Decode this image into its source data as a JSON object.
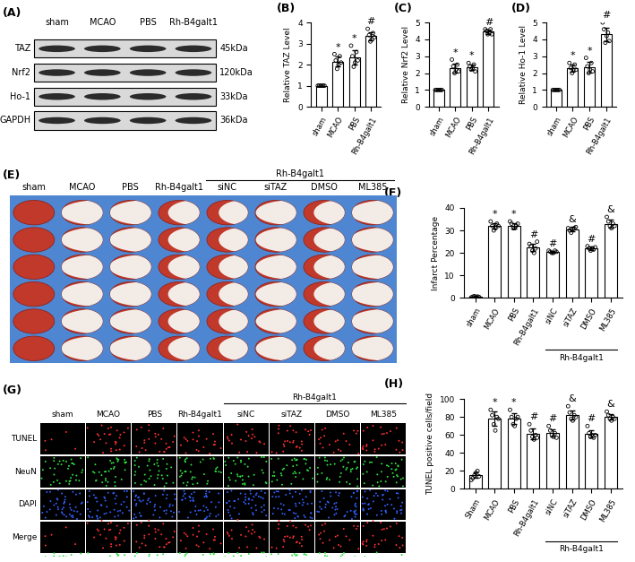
{
  "chart_data": [
    {
      "type": "bar",
      "title": "(B)",
      "ylabel": "Relative TAZ Level",
      "color": "#ffffff",
      "categories": [
        "sham",
        "MCAO",
        "PBS",
        "Rh-B4galt1"
      ],
      "values": [
        1,
        2.15,
        2.35,
        3.35
      ],
      "errors": [
        0,
        0.25,
        0.35,
        0.2
      ],
      "points": [
        [
          1,
          1,
          1,
          1,
          1,
          1
        ],
        [
          2.5,
          2.2,
          1.8,
          2.0,
          2.4,
          2.1
        ],
        [
          2.9,
          2.4,
          1.9,
          2.1,
          2.6,
          2.2
        ],
        [
          3.7,
          3.4,
          3.1,
          3.2,
          3.5,
          3.3
        ]
      ],
      "annotations": [
        null,
        "*",
        "*",
        "#"
      ],
      "ylim": [
        0,
        4
      ],
      "yticks": [
        0,
        1,
        2,
        3,
        4
      ]
    },
    {
      "type": "bar",
      "title": "(C)",
      "ylabel": "Relative Nrf2 Level",
      "color": "#ffffff",
      "categories": [
        "sham",
        "MCAO",
        "PBS",
        "Rh-B4galt1"
      ],
      "values": [
        1,
        2.3,
        2.35,
        4.45
      ],
      "errors": [
        0,
        0.25,
        0.15,
        0.12
      ],
      "points": [
        [
          1,
          1,
          1,
          1,
          1,
          1
        ],
        [
          2.8,
          2.4,
          2.0,
          2.2,
          2.5,
          2.1
        ],
        [
          2.6,
          2.4,
          2.2,
          2.3,
          2.5,
          2.1
        ],
        [
          4.6,
          4.5,
          4.3,
          4.4,
          4.6,
          4.3
        ]
      ],
      "annotations": [
        null,
        "*",
        "*",
        "#"
      ],
      "ylim": [
        0,
        5
      ],
      "yticks": [
        0,
        1,
        2,
        3,
        4,
        5
      ]
    },
    {
      "type": "bar",
      "title": "(D)",
      "ylabel": "Relative Ho-1 Level",
      "color": "#ffffff",
      "categories": [
        "sham",
        "MCAO",
        "PBS",
        "Rh-B4galt1"
      ],
      "values": [
        1,
        2.3,
        2.35,
        4.3
      ],
      "errors": [
        0,
        0.2,
        0.3,
        0.4
      ],
      "points": [
        [
          1,
          1,
          1,
          1,
          1,
          1
        ],
        [
          2.6,
          2.3,
          2.0,
          2.2,
          2.5,
          2.2
        ],
        [
          2.9,
          2.4,
          2.0,
          2.2,
          2.6,
          2.1
        ],
        [
          5.0,
          4.6,
          3.8,
          4.2,
          4.4,
          3.9
        ]
      ],
      "annotations": [
        null,
        "*",
        "*",
        "#"
      ],
      "ylim": [
        0,
        5
      ],
      "yticks": [
        0,
        1,
        2,
        3,
        4,
        5
      ]
    },
    {
      "type": "bar",
      "title": "(F)",
      "ylabel": "Infarct Percentage",
      "color": "#ffffff",
      "categories": [
        "sham",
        "MCAO",
        "PBS",
        "Rh-B4galt1",
        "siNC",
        "siTAZ",
        "DMSO",
        "ML385"
      ],
      "values": [
        0.5,
        32,
        32,
        22.5,
        20.5,
        30.5,
        22,
        33
      ],
      "errors": [
        0.3,
        1.3,
        1.3,
        1.7,
        0.4,
        1,
        0.7,
        1.7
      ],
      "points": [
        [
          0.2,
          0.5,
          0.8,
          0.3,
          0.6,
          0.4
        ],
        [
          34,
          32,
          30,
          31,
          33,
          32
        ],
        [
          34,
          33,
          31,
          31,
          32,
          33
        ],
        [
          24,
          23,
          21,
          20,
          22,
          25
        ],
        [
          21,
          20.5,
          20,
          20,
          21,
          20.5
        ],
        [
          31,
          30,
          29,
          30.5,
          31,
          31.5
        ],
        [
          23,
          22,
          21,
          22,
          21.5,
          22.5
        ],
        [
          36,
          34,
          32,
          31,
          33,
          32
        ]
      ],
      "annotations": [
        null,
        "*",
        "*",
        "#",
        "#",
        "&",
        "#",
        "&"
      ],
      "bracket": {
        "label": "Rh-B4galt1",
        "categories": [
          "siNC",
          "siTAZ",
          "DMSO",
          "ML385"
        ]
      },
      "ylim": [
        0,
        40
      ],
      "yticks": [
        0,
        10,
        20,
        30,
        40
      ]
    },
    {
      "type": "bar",
      "title": "(H)",
      "ylabel": "TUNEL positive cells/field",
      "color": "#ffffff",
      "categories": [
        "Sham",
        "MCAO",
        "PBS",
        "Rh-B4galt1",
        "siNC",
        "siTAZ",
        "DMSO",
        "ML385"
      ],
      "values": [
        15,
        78,
        78,
        61,
        62,
        82,
        61,
        80
      ],
      "errors": [
        3,
        8,
        6,
        6,
        4,
        5,
        4,
        3
      ],
      "points": [
        [
          10,
          12,
          15,
          18,
          20,
          14
        ],
        [
          88,
          82,
          72,
          65,
          80,
          78
        ],
        [
          88,
          80,
          72,
          70,
          78,
          80
        ],
        [
          72,
          65,
          58,
          55,
          60,
          57
        ],
        [
          70,
          65,
          60,
          58,
          62,
          57
        ],
        [
          92,
          85,
          78,
          76,
          82,
          80
        ],
        [
          70,
          62,
          58,
          60,
          57,
          60
        ],
        [
          86,
          82,
          78,
          76,
          80,
          78
        ]
      ],
      "annotations": [
        null,
        "*",
        "*",
        "#",
        "#",
        "&",
        "#",
        "&"
      ],
      "bracket": {
        "label": "Rh-B4galt1",
        "categories": [
          "siNC",
          "siTAZ",
          "DMSO",
          "ML385"
        ]
      },
      "ylim": [
        0,
        100
      ],
      "yticks": [
        0,
        20,
        40,
        60,
        80,
        100
      ]
    }
  ],
  "blot": {
    "title": "(A)",
    "columns": [
      "sham",
      "MCAO",
      "PBS",
      "Rh-B4galt1"
    ],
    "rows": [
      {
        "label": "TAZ",
        "size": "45kDa"
      },
      {
        "label": "Nrf2",
        "size": "120kDa"
      },
      {
        "label": "Ho-1",
        "size": "33kDa"
      },
      {
        "label": "GAPDH",
        "size": "36kDa"
      }
    ]
  },
  "ttc": {
    "title": "(E)",
    "columns": [
      "sham",
      "MCAO",
      "PBS",
      "Rh-B4galt1",
      "siNC",
      "siTAZ",
      "DMSO",
      "ML385"
    ],
    "bracket": {
      "label": "Rh-B4galt1",
      "categories": [
        "siNC",
        "siTAZ",
        "DMSO",
        "ML385"
      ]
    }
  },
  "fluorescence": {
    "title": "(G)",
    "columns": [
      "sham",
      "MCAO",
      "PBS",
      "Rh-B4galt1",
      "siNC",
      "siTAZ",
      "DMSO",
      "ML385"
    ],
    "rows": [
      "TUNEL",
      "NeuN",
      "DAPI",
      "Merge"
    ],
    "bracket": {
      "label": "Rh-B4galt1",
      "categories": [
        "siNC",
        "siTAZ",
        "DMSO",
        "ML385"
      ]
    }
  }
}
